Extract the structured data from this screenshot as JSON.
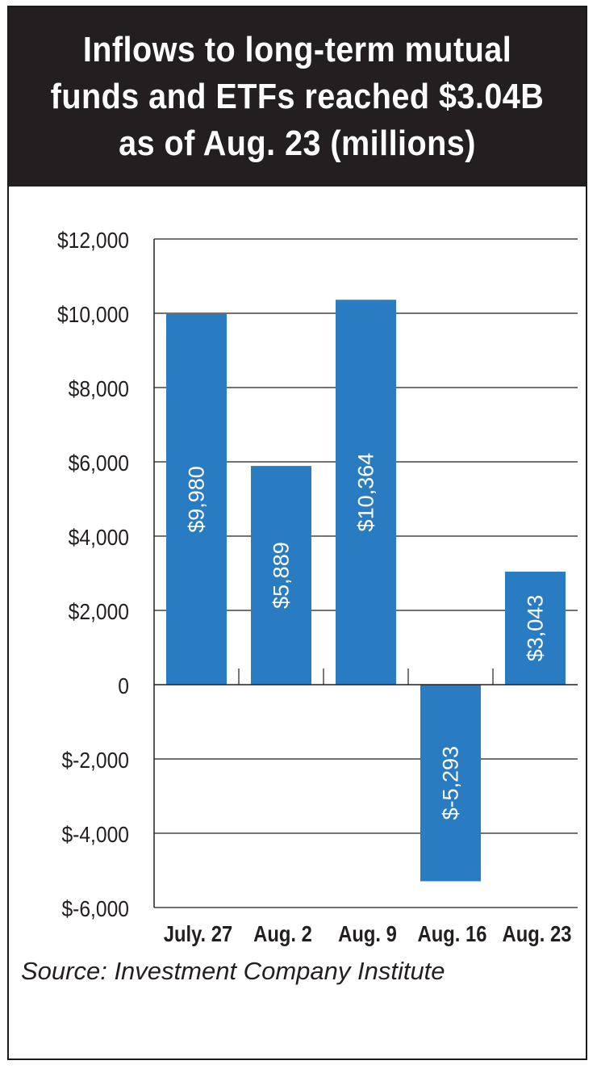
{
  "header": {
    "title_line1": "Inflows to long-term mutual",
    "title_line2": "funds and ETFs reached $3.04B",
    "title_line3": "as of Aug. 23 (millions)"
  },
  "source": "Source: Investment Company Institute",
  "colors": {
    "bar": "#2a7cc2",
    "header_bg": "#231f20",
    "grid": "#231f20",
    "bar_label": "#ffffff"
  },
  "chart_data": {
    "type": "bar",
    "title": "Inflows to long-term mutual funds and ETFs reached $3.04B as of Aug. 23 (millions)",
    "categories": [
      "July. 27",
      "Aug. 2",
      "Aug. 9",
      "Aug. 16",
      "Aug. 23"
    ],
    "values": [
      9980,
      5889,
      10364,
      -5293,
      3043
    ],
    "data_labels": [
      "$9,980",
      "$5,889",
      "$10,364",
      "$-5,293",
      "$3,043"
    ],
    "ylim": [
      -6000,
      12000
    ],
    "yticks": [
      12000,
      10000,
      8000,
      6000,
      4000,
      2000,
      0,
      -2000,
      -4000,
      -6000
    ],
    "ytick_labels": [
      "$12,000",
      "$10,000",
      "$8,000",
      "$6,000",
      "$4,000",
      "$2,000",
      "0",
      "$-2,000",
      "$-4,000",
      "$-6,000"
    ],
    "grid": true,
    "data_label_orientation": "vertical"
  }
}
